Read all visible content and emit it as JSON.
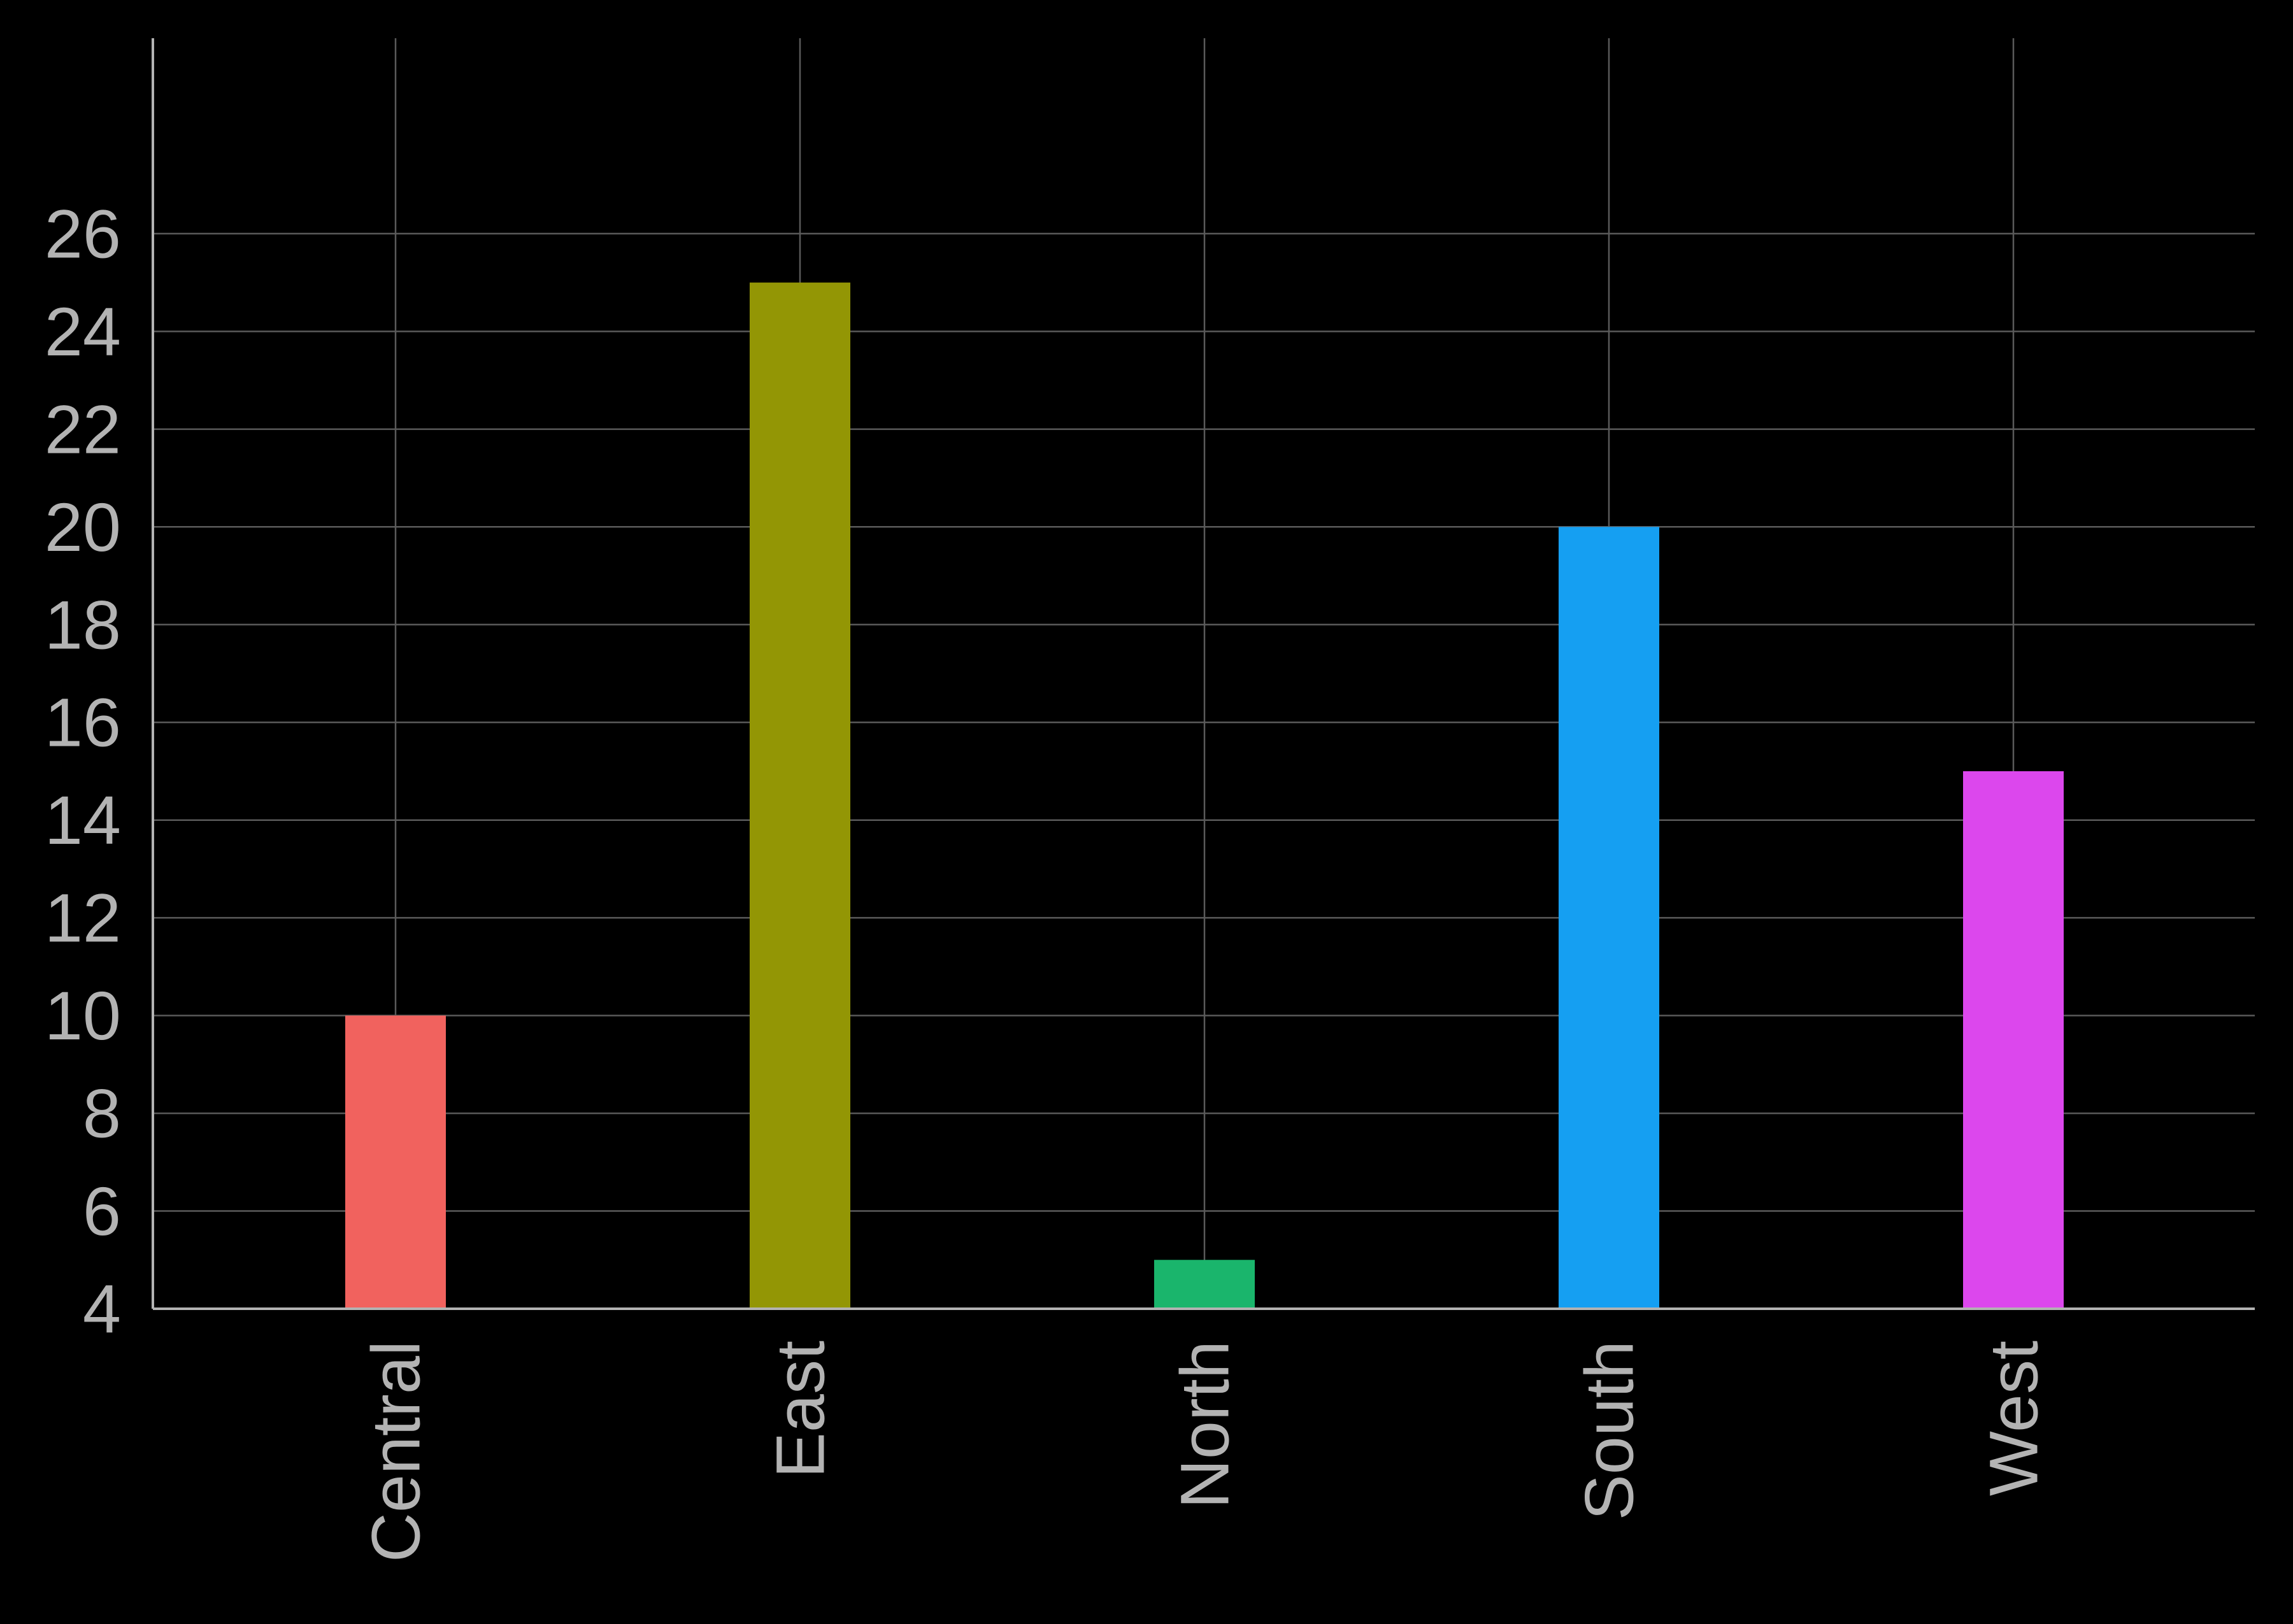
{
  "chart_data": {
    "type": "bar",
    "title": "",
    "xlabel": "",
    "ylabel": "",
    "categories": [
      "Central",
      "East",
      "North",
      "South",
      "West"
    ],
    "values": [
      10,
      25,
      5,
      20,
      15
    ],
    "colors": [
      "#f1625e",
      "#939605",
      "#1ab56c",
      "#159ff2",
      "#dc47ed"
    ],
    "ylim": [
      4,
      30
    ],
    "yticks": [
      4,
      6,
      8,
      10,
      12,
      14,
      16,
      18,
      20,
      22,
      24,
      26
    ],
    "grid": true,
    "legend": "none",
    "background": "#000000"
  }
}
